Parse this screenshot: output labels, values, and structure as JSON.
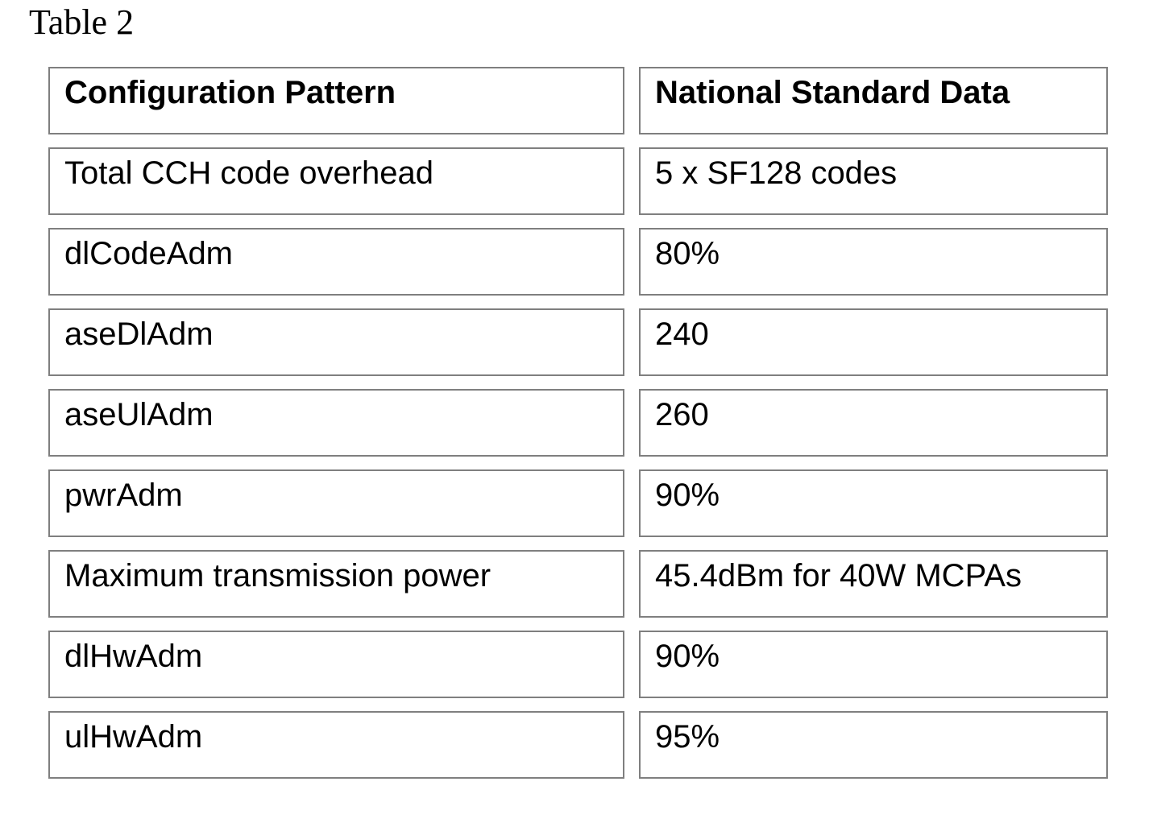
{
  "page": {
    "caption": "Table 2",
    "colors": {
      "background": "#ffffff",
      "cell_border": "#7f7f7f",
      "text": "#000000"
    }
  },
  "table": {
    "columns": [
      "Configuration Pattern",
      "National Standard Data"
    ],
    "rows": [
      {
        "pattern": "Total CCH code overhead",
        "value": "5 x SF128 codes"
      },
      {
        "pattern": "dlCodeAdm",
        "value": "80%"
      },
      {
        "pattern": "aseDlAdm",
        "value": "240"
      },
      {
        "pattern": "aseUlAdm",
        "value": "260"
      },
      {
        "pattern": "pwrAdm",
        "value": "90%"
      },
      {
        "pattern": "Maximum transmission power",
        "value": "45.4dBm for 40W MCPAs"
      },
      {
        "pattern": "dlHwAdm",
        "value": "90%"
      },
      {
        "pattern": "ulHwAdm",
        "value": "95%"
      }
    ]
  }
}
